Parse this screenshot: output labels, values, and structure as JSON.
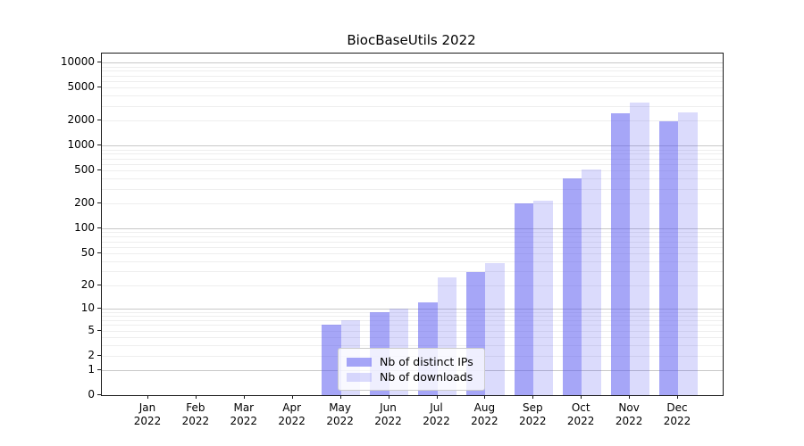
{
  "figure": {
    "title": "BiocBaseUtils 2022",
    "background_color": "#ffffff"
  },
  "chart_data": {
    "type": "bar",
    "title": "BiocBaseUtils 2022",
    "categories": [
      "Jan 2022",
      "Feb 2022",
      "Mar 2022",
      "Apr 2022",
      "May 2022",
      "Jun 2022",
      "Jul 2022",
      "Aug 2022",
      "Sep 2022",
      "Oct 2022",
      "Nov 2022",
      "Dec 2022"
    ],
    "series": [
      {
        "name": "Nb of distinct IPs",
        "color": "rgba(85,85,240,0.52)",
        "values": [
          0,
          0,
          0,
          0,
          6,
          9,
          12,
          29,
          200,
          405,
          2450,
          1950
        ]
      },
      {
        "name": "Nb of downloads",
        "color": "rgba(85,85,240,0.21)",
        "values": [
          0,
          0,
          0,
          0,
          7,
          10,
          25,
          38,
          220,
          515,
          3280,
          2550
        ]
      }
    ],
    "xlabel": "",
    "ylabel": "",
    "yscale": "log1p",
    "yticks": [
      0,
      1,
      2,
      5,
      10,
      20,
      50,
      100,
      200,
      500,
      1000,
      2000,
      5000,
      10000
    ],
    "ylim": [
      0,
      12000
    ],
    "grid": {
      "major_lines_at": [
        1,
        10,
        100,
        1000,
        10000
      ],
      "minor_multiples_per_decade": [
        2,
        3,
        4,
        5,
        6,
        7,
        8,
        9
      ],
      "major_color": "#c8c8c8",
      "minor_color": "#eeeeee"
    },
    "legend": {
      "position": "lower center",
      "items": [
        "Nb of distinct IPs",
        "Nb of downloads"
      ]
    }
  },
  "colors": {
    "bar_fill_base": "#5555f0",
    "spine": "#1a1a1a",
    "legend_border": "#cccccc",
    "tick_text": "#000000"
  }
}
